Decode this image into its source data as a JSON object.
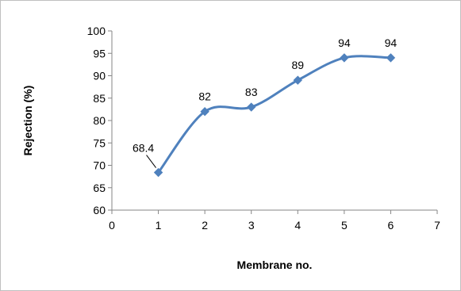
{
  "chart_data": {
    "type": "line",
    "title": "",
    "xlabel": "Membrane no.",
    "ylabel": "Rejection (%)",
    "xlim": [
      0,
      7
    ],
    "ylim": [
      60,
      100
    ],
    "x_ticks": [
      0,
      1,
      2,
      3,
      4,
      5,
      6,
      7
    ],
    "y_ticks": [
      60,
      65,
      70,
      75,
      80,
      85,
      90,
      95,
      100
    ],
    "grid": false,
    "legend": "none",
    "smooth": true,
    "marker": "diamond",
    "color": "#4F81BD",
    "series": [
      {
        "x": [
          1,
          2,
          3,
          4,
          5,
          6
        ],
        "values": [
          68.4,
          82,
          83,
          89,
          94,
          94
        ],
        "labels": [
          "68.4",
          "82",
          "83",
          "89",
          "94",
          "94"
        ]
      }
    ]
  }
}
